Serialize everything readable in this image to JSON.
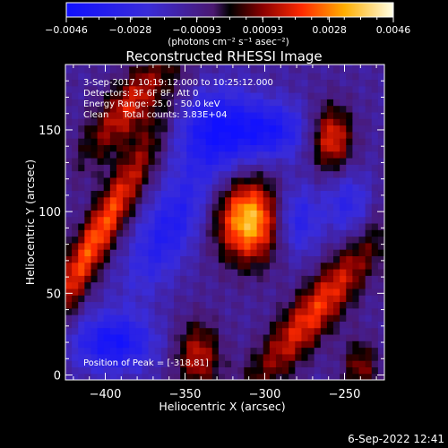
{
  "chart_data": {
    "type": "heatmap",
    "title": "Reconstructed RHESSI Image",
    "xlabel": "Heliocentric X (arcsec)",
    "ylabel": "Heliocentric Y (arcsec)",
    "xlim": [
      -425,
      -225
    ],
    "ylim": [
      -3,
      190
    ],
    "x_ticks": [
      -400,
      -350,
      -300,
      -250
    ],
    "y_ticks": [
      0,
      50,
      100,
      150
    ],
    "x_tick_labels": [
      "−400",
      "−350",
      "−300",
      "−250"
    ],
    "y_tick_labels": [
      "0",
      "50",
      "100",
      "150"
    ],
    "colorbar": {
      "min": -0.0046,
      "max": 0.0046,
      "ticks": [
        -0.0046,
        -0.0028,
        -0.00093,
        0.00093,
        0.0028,
        0.0046
      ],
      "tick_labels": [
        "−0.0046",
        "−0.0028",
        "−0.00093",
        "0.00093",
        "0.0028",
        "0.0046"
      ],
      "unit_label": "(photons cm⁻² s⁻¹ asec⁻²)"
    },
    "annotations": [
      "3-Sep-2017 10:19:12.000 to 10:25:12.000",
      "Detectors: 3F 6F 8F, Att 0",
      "Energy Range: 25.0 - 50.0 keV",
      "Clean     Total counts: 3.83E+04"
    ],
    "peak_label": "Position of Peak = [-318,81]",
    "peak": {
      "x": -318,
      "y": 81
    },
    "pixel_arcsec": 4,
    "sources": [
      {
        "x": -310,
        "y": 95,
        "sx": 14,
        "sy": 18,
        "rot": 0,
        "amp": 0.0048
      },
      {
        "x": -405,
        "y": 85,
        "sx": 8,
        "sy": 55,
        "rot": -30,
        "amp": 0.0036
      },
      {
        "x": -385,
        "y": 165,
        "sx": 10,
        "sy": 30,
        "rot": -40,
        "amp": 0.0028
      },
      {
        "x": -258,
        "y": 145,
        "sx": 9,
        "sy": 14,
        "rot": 0,
        "amp": 0.0032
      },
      {
        "x": -268,
        "y": 40,
        "sx": 10,
        "sy": 45,
        "rot": -40,
        "amp": 0.0032
      },
      {
        "x": -342,
        "y": 12,
        "sx": 10,
        "sy": 15,
        "rot": 0,
        "amp": 0.0026
      },
      {
        "x": -240,
        "y": 5,
        "sx": 8,
        "sy": 12,
        "rot": 0,
        "amp": 0.002
      },
      {
        "x": -330,
        "y": 150,
        "sx": 18,
        "sy": 18,
        "rot": 0,
        "amp": -0.003
      },
      {
        "x": -295,
        "y": 150,
        "sx": 16,
        "sy": 12,
        "rot": 0,
        "amp": -0.0025
      },
      {
        "x": -360,
        "y": 90,
        "sx": 12,
        "sy": 30,
        "rot": -30,
        "amp": -0.0024
      },
      {
        "x": -395,
        "y": 20,
        "sx": 18,
        "sy": 12,
        "rot": 0,
        "amp": -0.003
      },
      {
        "x": -280,
        "y": 95,
        "sx": 10,
        "sy": 15,
        "rot": 0,
        "amp": -0.0022
      },
      {
        "x": -248,
        "y": 105,
        "sx": 10,
        "sy": 14,
        "rot": 0,
        "amp": -0.0018
      }
    ]
  },
  "footer": {
    "timestamp": "6-Sep-2022 12:41"
  }
}
